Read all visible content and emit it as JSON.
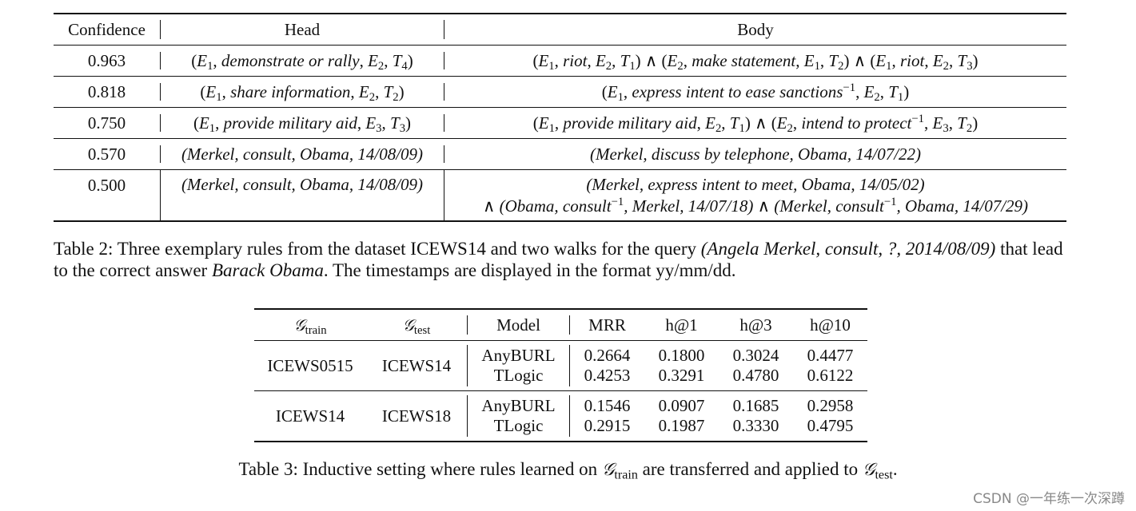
{
  "table2": {
    "headers": [
      "Confidence",
      "Head",
      "Body"
    ],
    "rows": [
      {
        "confidence": "0.963"
      },
      {
        "confidence": "0.818"
      },
      {
        "confidence": "0.750"
      },
      {
        "confidence": "0.570",
        "head": "(Merkel, consult, Obama, 14/08/09)",
        "body": "(Merkel, discuss by telephone, Obama, 14/07/22)"
      },
      {
        "confidence": "0.500",
        "head": "(Merkel, consult, Obama, 14/08/09)",
        "body_line1": "(Merkel, express intent to meet, Obama, 14/05/02)"
      }
    ],
    "rule_terms": {
      "demonstrate": "demonstrate or rally",
      "riot": "riot",
      "make_statement": "make statement",
      "share_info": "share information",
      "express_ease": "express intent to ease sanctions",
      "provide_aid": "provide military aid",
      "intend_protect": "intend to protect",
      "consult": "consult",
      "obama": "Obama",
      "merkel": "Merkel",
      "date1": "14/07/18",
      "date2": "14/07/29"
    },
    "caption": {
      "prefix": "Table 2: Three exemplary rules from the dataset ICEWS14 and two walks for the query ",
      "query": "(Angela Merkel, consult, ?, 2014/08/09)",
      "middle": " that lead to the correct answer ",
      "answer": "Barack Obama",
      "suffix": ". The timestamps are displayed in the format yy/mm/dd."
    }
  },
  "table3": {
    "headers": {
      "g_train_sub": "train",
      "g_test_sub": "test",
      "model": "Model",
      "mrr": "MRR",
      "h1": "h@1",
      "h3": "h@3",
      "h10": "h@10"
    },
    "groups": [
      {
        "train": "ICEWS0515",
        "test": "ICEWS14",
        "models": [
          {
            "name": "AnyBURL",
            "mrr": "0.2664",
            "h1": "0.1800",
            "h3": "0.3024",
            "h10": "0.4477"
          },
          {
            "name": "TLogic",
            "mrr": "0.4253",
            "h1": "0.3291",
            "h3": "0.4780",
            "h10": "0.6122"
          }
        ]
      },
      {
        "train": "ICEWS14",
        "test": "ICEWS18",
        "models": [
          {
            "name": "AnyBURL",
            "mrr": "0.1546",
            "h1": "0.0907",
            "h3": "0.1685",
            "h10": "0.2958"
          },
          {
            "name": "TLogic",
            "mrr": "0.2915",
            "h1": "0.1987",
            "h3": "0.3330",
            "h10": "0.4795"
          }
        ]
      }
    ],
    "caption": {
      "prefix": "Table 3: Inductive setting where rules learned on ",
      "middle": " are transferred and applied to ",
      "suffix": "."
    }
  },
  "watermark": "CSDN @一年练一次深蹲"
}
